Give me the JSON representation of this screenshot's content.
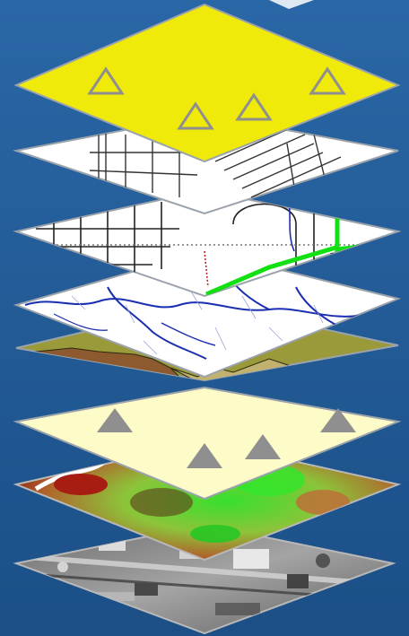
{
  "scene": {
    "background": "#1f5a94",
    "layer_border": "#9aa2ab"
  },
  "layers": [
    {
      "name": "imagery",
      "fill": "#8c8c8c",
      "pattern": "aerial-photo"
    },
    {
      "name": "elevation",
      "fill": "#6fa040",
      "pattern": "elevation-gradient"
    },
    {
      "name": "point-features",
      "fill": "#fdfbc8",
      "pattern": "gray-triangles"
    },
    {
      "name": "soils",
      "fill": "#9a9a3a",
      "pattern": "polygon-regions"
    },
    {
      "name": "hydrology",
      "fill": "#ffffff",
      "pattern": "blue-streams"
    },
    {
      "name": "parcels",
      "fill": "#ffffff",
      "pattern": "lines-with-route"
    },
    {
      "name": "streets",
      "fill": "#ffffff",
      "pattern": "street-grid"
    },
    {
      "name": "sample-points",
      "fill": "#f0ea0a",
      "pattern": "outline-triangles"
    }
  ]
}
